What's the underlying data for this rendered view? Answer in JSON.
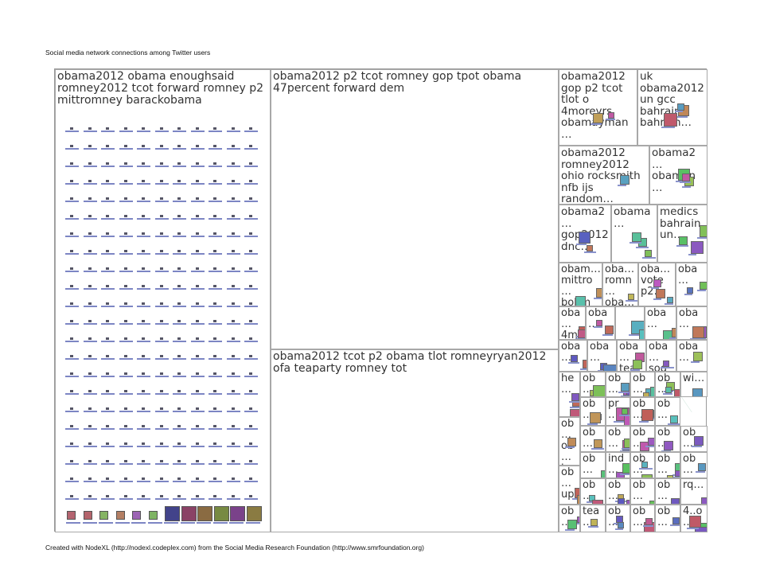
{
  "header": {
    "title": "Social media network connections among Twitter users"
  },
  "footer": {
    "credit": "Created with NodeXL (http://nodexl.codeplex.com) from the Social Media Research Foundation (http://www.smrfoundation.org)"
  },
  "colors": {
    "edge": "#4f9a7a",
    "edge_light": "#8fc3ad",
    "node_label": "#5566bb",
    "border": "#a8a8a8"
  },
  "groups": [
    {
      "id": "g1",
      "label": "obama2012 obama enoughsaid romney2012 tcot forward romney p2 mittromney barackobama"
    },
    {
      "id": "g2",
      "label": "obama2012 p2 tcot romney gop tpot obama 47percent forward dem"
    },
    {
      "id": "g3",
      "label": "obama2012 tcot p2 obama tlot romneyryan2012 ofa teaparty romney tot"
    },
    {
      "id": "g4",
      "label": "obama2012 gop p2 tcot tlot o 4moreyrs obamayman…"
    },
    {
      "id": "g5",
      "label": "uk obama2012 un gcc bahrain bahrian…"
    },
    {
      "id": "g6",
      "label": "obama2012 romney2012 ohio rocksmith nfb ijs random…"
    },
    {
      "id": "g7",
      "label": "obama2… obaman…"
    },
    {
      "id": "g8",
      "label": "obama2… gop2012 dnc…"
    },
    {
      "id": "g9",
      "label": "obama…"
    },
    {
      "id": "g10",
      "label": "medics bahrain un…"
    },
    {
      "id": "g11",
      "label": "obam… mittro… bobm…"
    },
    {
      "id": "g12",
      "label": "oba… romn… oba…"
    },
    {
      "id": "g13",
      "label": "oba… vote p2…"
    },
    {
      "id": "g14",
      "label": "oba…"
    },
    {
      "id": "g15",
      "label": "oba… 4m…"
    },
    {
      "id": "g16",
      "label": "oba…"
    },
    {
      "id": "g17",
      "label": ""
    },
    {
      "id": "g18",
      "label": "oba…"
    },
    {
      "id": "g19",
      "label": "oba…"
    },
    {
      "id": "g20",
      "label": "oba…"
    },
    {
      "id": "g21",
      "label": "oba…"
    },
    {
      "id": "g22",
      "label": "oba… tea…"
    },
    {
      "id": "g23",
      "label": "oba… sog…"
    },
    {
      "id": "g24",
      "label": "oba…"
    },
    {
      "id": "g25",
      "label": "he…"
    },
    {
      "id": "g26",
      "label": "ob…"
    },
    {
      "id": "g27",
      "label": "ob…"
    },
    {
      "id": "g28",
      "label": "ob…"
    },
    {
      "id": "g29",
      "label": "ob…"
    },
    {
      "id": "g30",
      "label": "wi…"
    },
    {
      "id": "g31",
      "label": "ob…"
    },
    {
      "id": "g32",
      "label": "pr…"
    },
    {
      "id": "g33",
      "label": "ob…"
    },
    {
      "id": "g34",
      "label": "ob…"
    },
    {
      "id": "g35",
      "label": "ob… ob… te…"
    },
    {
      "id": "g36",
      "label": "ob…"
    },
    {
      "id": "g37",
      "label": "ob…"
    },
    {
      "id": "g38",
      "label": "ob…"
    },
    {
      "id": "g39",
      "label": "ob…"
    },
    {
      "id": "g40",
      "label": "ob…"
    },
    {
      "id": "g41",
      "label": "ob… up…"
    },
    {
      "id": "g42",
      "label": "ob…"
    },
    {
      "id": "g43",
      "label": "ind…"
    },
    {
      "id": "g44",
      "label": "ob…"
    },
    {
      "id": "g45",
      "label": "ob…"
    },
    {
      "id": "g46",
      "label": "ob…"
    },
    {
      "id": "g47",
      "label": "ob…"
    },
    {
      "id": "g48",
      "label": "ob…"
    },
    {
      "id": "g49",
      "label": "ob…"
    },
    {
      "id": "g50",
      "label": "ob…"
    },
    {
      "id": "g51",
      "label": "rq…"
    },
    {
      "id": "g52",
      "label": "ob…"
    },
    {
      "id": "g53",
      "label": "tea…"
    },
    {
      "id": "g54",
      "label": "ob…"
    },
    {
      "id": "g55",
      "label": "ob…"
    },
    {
      "id": "g56",
      "label": "ob…"
    },
    {
      "id": "g57",
      "label": "4..o…"
    }
  ]
}
